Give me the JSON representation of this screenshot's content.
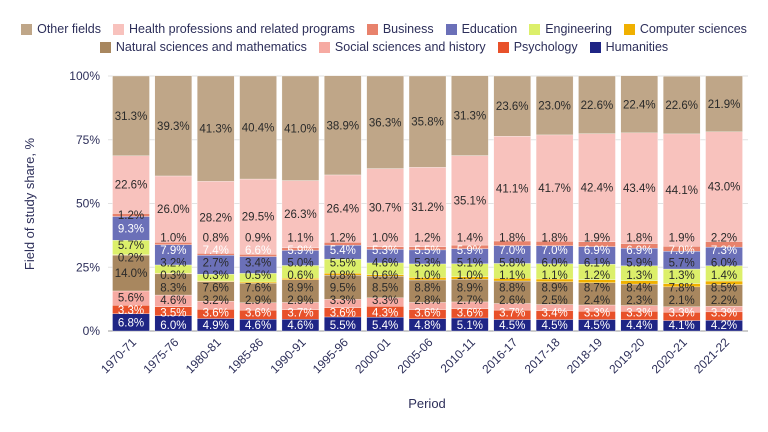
{
  "chart_data": {
    "type": "bar",
    "stacked": true,
    "title": "",
    "xlabel": "Period",
    "ylabel": "Field of study share, %",
    "ylim": [
      0,
      100
    ],
    "yticks": [
      "0%",
      "25%",
      "50%",
      "75%",
      "100%"
    ],
    "grid": true,
    "legend_position": "top",
    "categories": [
      "1970-71",
      "1975-76",
      "1980-81",
      "1985-86",
      "1990-91",
      "1995-96",
      "2000-01",
      "2005-06",
      "2010-11",
      "2016-17",
      "2017-18",
      "2018-19",
      "2019-20",
      "2020-21",
      "2021-22"
    ],
    "series": [
      {
        "name": "Humanities",
        "color": "#1f2585",
        "values": [
          6.8,
          6.0,
          4.9,
          4.6,
          4.6,
          5.5,
          5.4,
          4.8,
          5.1,
          4.5,
          4.5,
          4.5,
          4.4,
          4.1,
          4.2
        ]
      },
      {
        "name": "Psychology",
        "color": "#e8512a",
        "values": [
          3.3,
          3.5,
          3.6,
          3.6,
          3.7,
          3.6,
          4.3,
          3.6,
          3.6,
          3.7,
          3.4,
          3.3,
          3.3,
          3.3,
          3.3
        ]
      },
      {
        "name": "Social sciences and history",
        "color": "#f6aaa2",
        "values": [
          5.6,
          4.6,
          3.2,
          2.9,
          2.9,
          3.3,
          3.3,
          2.8,
          2.7,
          2.6,
          2.5,
          2.4,
          2.3,
          2.1,
          2.2
        ]
      },
      {
        "name": "Natural sciences and mathematics",
        "color": "#a8875f",
        "values": [
          14.0,
          8.3,
          7.6,
          7.6,
          8.9,
          9.5,
          8.5,
          8.8,
          8.9,
          8.8,
          8.9,
          8.7,
          8.4,
          7.8,
          8.5
        ]
      },
      {
        "name": "Computer sciences",
        "color": "#f0b000",
        "values": [
          0.2,
          0.3,
          0.3,
          0.5,
          0.6,
          0.8,
          0.6,
          1.0,
          1.0,
          1.1,
          1.1,
          1.2,
          1.3,
          1.3,
          1.4
        ]
      },
      {
        "name": "Engineering",
        "color": "#dcef6a",
        "values": [
          5.7,
          3.2,
          2.7,
          3.4,
          5.0,
          5.5,
          4.6,
          5.3,
          5.1,
          5.8,
          6.0,
          6.1,
          5.9,
          5.7,
          6.0
        ]
      },
      {
        "name": "Education",
        "color": "#6b70b8",
        "values": [
          9.3,
          7.9,
          7.4,
          6.6,
          5.9,
          5.4,
          5.3,
          5.5,
          5.9,
          7.0,
          7.0,
          6.9,
          6.9,
          7.0,
          7.3
        ]
      },
      {
        "name": "Business",
        "color": "#e8826c",
        "values": [
          1.2,
          1.0,
          0.8,
          0.9,
          1.1,
          1.2,
          1.0,
          1.2,
          1.4,
          1.8,
          1.8,
          1.9,
          1.8,
          1.9,
          2.2
        ]
      },
      {
        "name": "Health professions and related programs",
        "color": "#f8c2bd",
        "values": [
          22.6,
          26.0,
          28.2,
          29.5,
          26.3,
          26.4,
          30.7,
          31.2,
          35.1,
          41.1,
          41.7,
          42.4,
          43.4,
          44.1,
          43.0
        ]
      },
      {
        "name": "Other fields",
        "color": "#bfa688",
        "values": [
          31.3,
          39.3,
          41.3,
          40.4,
          41.0,
          38.9,
          36.3,
          35.8,
          31.3,
          23.6,
          23.0,
          22.6,
          22.4,
          22.6,
          21.9
        ]
      }
    ],
    "legend_rows": [
      [
        "Other fields",
        "Health professions and related programs",
        "Business",
        "Education",
        "Engineering",
        "Computer sciences"
      ],
      [
        "Natural sciences and mathematics",
        "Social sciences and history",
        "Psychology",
        "Humanities"
      ]
    ]
  }
}
